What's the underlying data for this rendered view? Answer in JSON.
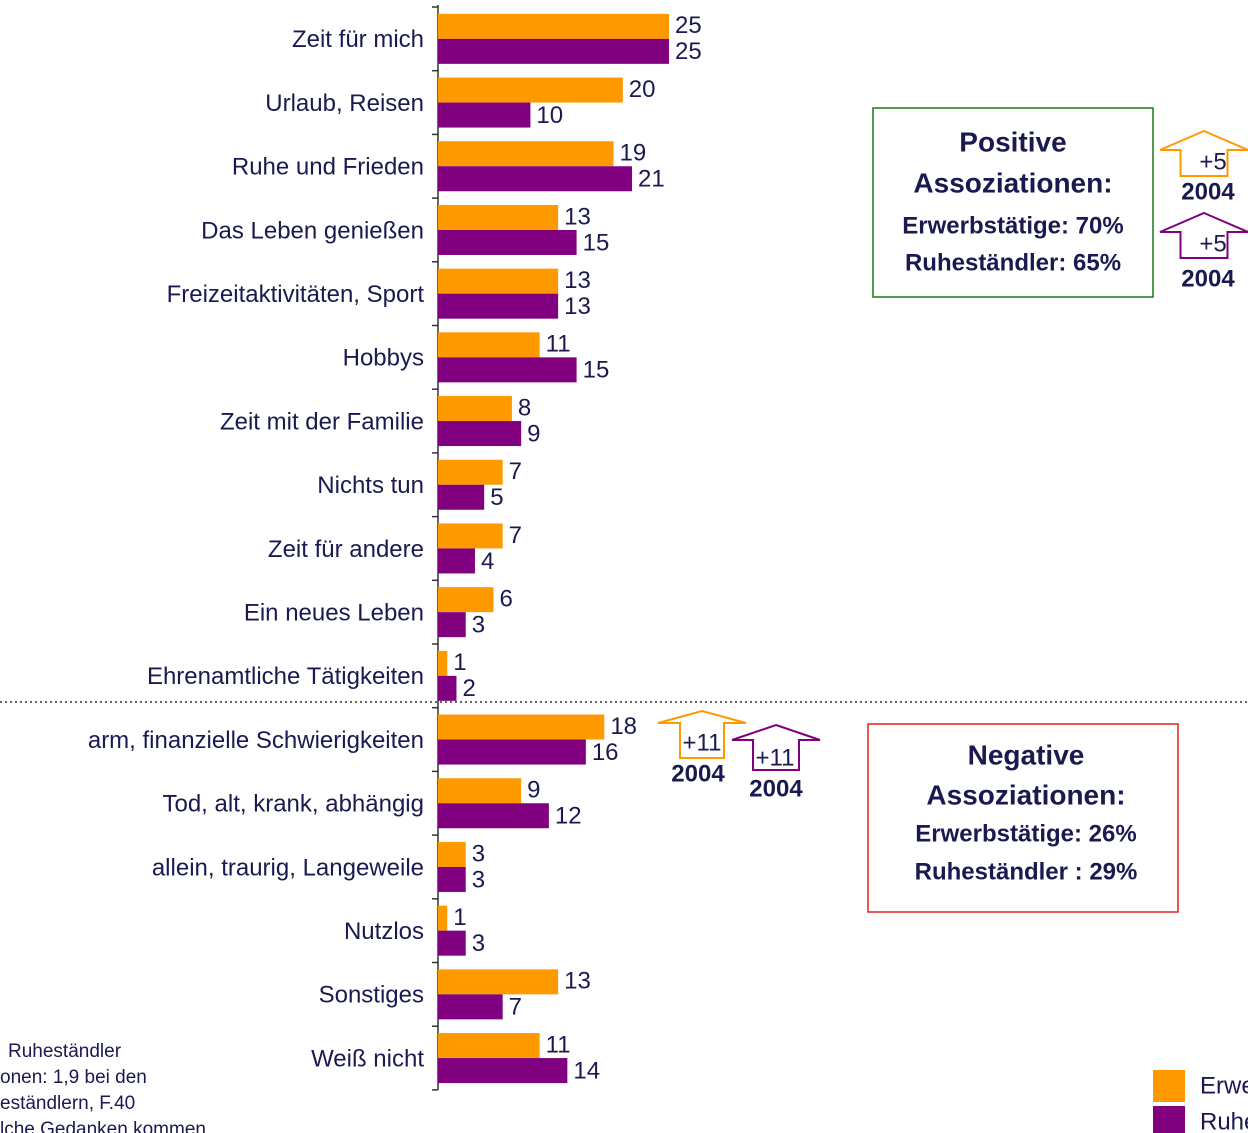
{
  "chart_data": {
    "type": "hbar",
    "categories": [
      "Zeit für mich",
      "Urlaub, Reisen",
      "Ruhe und Frieden",
      "Das Leben genießen",
      "Freizeitaktivitäten, Sport",
      "Hobbys",
      "Zeit mit der Familie",
      "Nichts tun",
      "Zeit für andere",
      "Ein neues Leben",
      "Ehrenamtliche Tätigkeiten",
      "arm, finanzielle Schwierigkeiten",
      "Tod, alt, krank, abhängig",
      "allein, traurig, Langeweile",
      "Nutzlos",
      "Sonstiges",
      "Weiß nicht"
    ],
    "series": [
      {
        "name": "Erwerbstätige",
        "color": "#ff9900",
        "values": [
          25,
          20,
          19,
          13,
          13,
          11,
          8,
          7,
          7,
          6,
          1,
          18,
          9,
          3,
          1,
          13,
          11
        ]
      },
      {
        "name": "Ruheständler",
        "color": "#800080",
        "values": [
          25,
          10,
          21,
          15,
          13,
          15,
          9,
          5,
          4,
          3,
          2,
          16,
          12,
          3,
          3,
          7,
          14
        ]
      }
    ],
    "boxes": [
      {
        "lines": [
          "Positive",
          "Assoziationen:",
          "Erwerbstätige: 70%",
          "Ruheständler: 65%"
        ],
        "color": "#1a7a1a",
        "arrows": [
          {
            "change": "+5",
            "year": "2004",
            "color": "#ff9900"
          },
          {
            "change": "+5",
            "year": "2004",
            "color": "#800080"
          }
        ]
      },
      {
        "lines": [
          "Negative",
          "Assoziationen:",
          "Erwerbstätige: 26%",
          "Ruheständler : 29%"
        ],
        "color": "#e02020",
        "arrows": [
          {
            "change": "+11",
            "year": "2004",
            "color": "#ff9900"
          },
          {
            "change": "+11",
            "year": "2004",
            "color": "#800080"
          }
        ]
      }
    ],
    "notes": [
      "Ruheständler",
      "onen: 1,9 bei den",
      "eständlern, F.40",
      "lche Gedanken kommen"
    ]
  }
}
